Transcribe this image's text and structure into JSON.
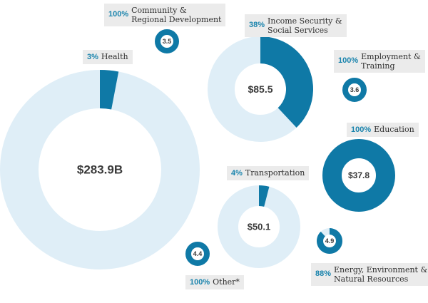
{
  "colors": {
    "share": "#0f79a6",
    "rest": "#dfeef7",
    "label_bg": "#ebebeb",
    "pct_text": "#1a84ad"
  },
  "chart_data": {
    "type": "pie",
    "series": [
      {
        "name": "Health",
        "share_pct": 3,
        "share_label": "3%",
        "total": 283.9,
        "total_label": "$283.9B"
      },
      {
        "name": "Community & Regional Development",
        "name_lines": [
          "Community &",
          "Regional Development"
        ],
        "share_pct": 100,
        "share_label": "100%",
        "total": 3.5,
        "total_label": "3.5"
      },
      {
        "name": "Income Security & Social Services",
        "name_lines": [
          "Income Security &",
          "Social Services"
        ],
        "share_pct": 38,
        "share_label": "38%",
        "total": 85.5,
        "total_label": "$85.5"
      },
      {
        "name": "Employment & Training",
        "name_lines": [
          "Employment &",
          "Training"
        ],
        "share_pct": 100,
        "share_label": "100%",
        "total": 3.6,
        "total_label": "3.6"
      },
      {
        "name": "Education",
        "share_pct": 100,
        "share_label": "100%",
        "total": 37.8,
        "total_label": "$37.8"
      },
      {
        "name": "Transportation",
        "share_pct": 4,
        "share_label": "4%",
        "total": 50.1,
        "total_label": "$50.1"
      },
      {
        "name": "Energy, Environment & Natural Resources",
        "name_lines": [
          "Energy, Environment &",
          "Natural Resources"
        ],
        "share_pct": 88,
        "share_label": "88%",
        "total": 4.9,
        "total_label": "4.9"
      },
      {
        "name": "Other*",
        "share_pct": 100,
        "share_label": "100%",
        "total": 4.4,
        "total_label": "4.4"
      }
    ]
  }
}
